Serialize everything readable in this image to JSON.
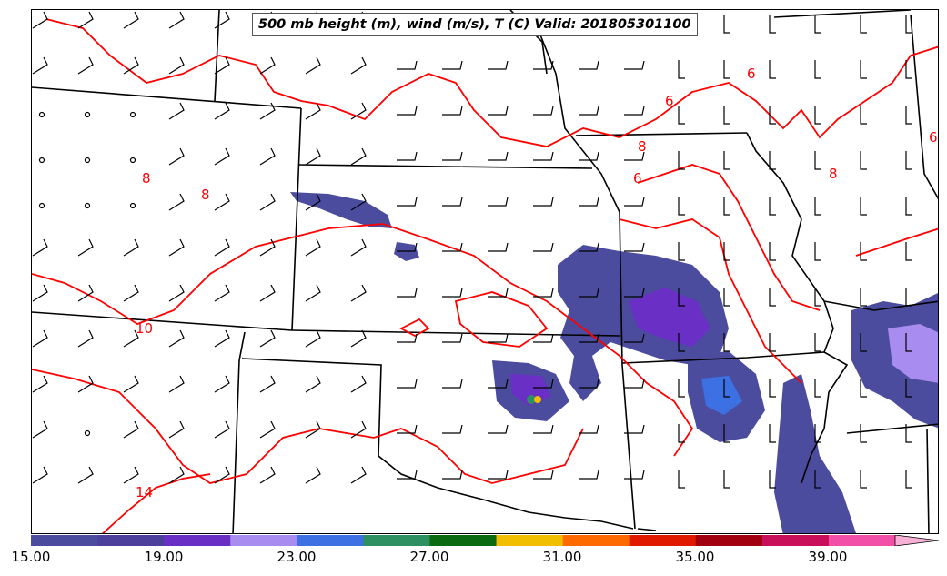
{
  "map": {
    "title": "500 mb height (m), wind (m/s), T (C) Valid: 201805301100",
    "contour_labels": [
      "6",
      "6",
      "6",
      "8",
      "8",
      "8",
      "8",
      "10",
      "14",
      "6"
    ],
    "contour_color": "#ff0000",
    "border_color": "#000000",
    "barb_color": "#000000"
  },
  "colorbar": {
    "ticks": [
      "15.00",
      "19.00",
      "23.00",
      "27.00",
      "31.00",
      "35.00",
      "39.00"
    ],
    "colors": [
      "#4b4c9e",
      "#4d3f9c",
      "#6a2fc4",
      "#a98cf0",
      "#3c70e3",
      "#2e9060",
      "#0a6a12",
      "#f2be00",
      "#ff6a00",
      "#e01a00",
      "#a00010",
      "#c8105a",
      "#f24fa8",
      "#f9b0d6"
    ]
  }
}
